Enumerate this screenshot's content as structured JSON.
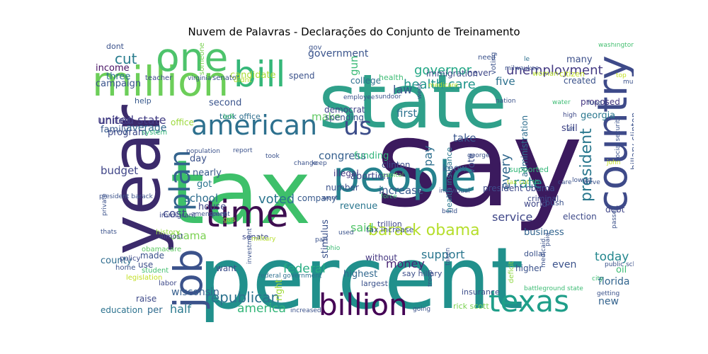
{
  "chart_data": {
    "type": "wordcloud",
    "title": "Nuvem de Palavras - Declarações do Conjunto de Treinamento",
    "words": [
      {
        "text": "say",
        "color": "#3b1a5e"
      },
      {
        "text": "tax",
        "color": "#3ec06a"
      },
      {
        "text": "state",
        "color": "#2fa08a"
      },
      {
        "text": "percent",
        "color": "#21908c"
      },
      {
        "text": "year",
        "color": "#3b2a6b"
      },
      {
        "text": "million",
        "color": "#6cce59"
      },
      {
        "text": "people",
        "color": "#26828e"
      },
      {
        "text": "one",
        "color": "#4dc36b"
      },
      {
        "text": "time",
        "color": "#3e0f50"
      },
      {
        "text": "bill",
        "color": "#35b779"
      },
      {
        "text": "country",
        "color": "#3e4a89"
      },
      {
        "text": "billion",
        "color": "#440154"
      },
      {
        "text": "texas",
        "color": "#1f9e89"
      },
      {
        "text": "job",
        "color": "#3b528b"
      },
      {
        "text": "american",
        "color": "#2d708e"
      },
      {
        "text": "plan",
        "color": "#33638d"
      },
      {
        "text": "us",
        "color": "#3d4e8a"
      },
      {
        "text": "barack obama",
        "color": "#b5de2b"
      },
      {
        "text": "republican",
        "color": "#2c728e"
      },
      {
        "text": "president",
        "color": "#2a788e"
      },
      {
        "text": "every",
        "color": "#31688e"
      },
      {
        "text": "rate",
        "color": "#25858e"
      },
      {
        "text": "health care",
        "color": "#1f958b"
      },
      {
        "text": "unemployment",
        "color": "#443a83"
      },
      {
        "text": "governor",
        "color": "#22a785"
      },
      {
        "text": "cut",
        "color": "#287c8e"
      },
      {
        "text": "government",
        "color": "#3a548c"
      },
      {
        "text": "united state",
        "color": "#433e85"
      },
      {
        "text": "congress",
        "color": "#355f8d"
      },
      {
        "text": "law",
        "color": "#39568c"
      },
      {
        "text": "pay",
        "color": "#2e6f8e"
      },
      {
        "text": "voted",
        "color": "#2b748e"
      },
      {
        "text": "america",
        "color": "#34b679"
      },
      {
        "text": "federal",
        "color": "#26ad81"
      },
      {
        "text": "money",
        "color": "#482475"
      },
      {
        "text": "service",
        "color": "#3f4788"
      },
      {
        "text": "today",
        "color": "#24878e"
      },
      {
        "text": "half",
        "color": "#29798e"
      },
      {
        "text": "cost",
        "color": "#3e4989"
      },
      {
        "text": "said",
        "color": "#52c569"
      },
      {
        "text": "support",
        "color": "#2a768e"
      },
      {
        "text": "school",
        "color": "#2e6d8e"
      },
      {
        "text": "obama",
        "color": "#7ad151"
      },
      {
        "text": "increase",
        "color": "#38588c"
      },
      {
        "text": "budget",
        "color": "#404688"
      },
      {
        "text": "wisconsin",
        "color": "#355e8d"
      },
      {
        "text": "make",
        "color": "#5ec962"
      },
      {
        "text": "first",
        "color": "#2c718e"
      },
      {
        "text": "take",
        "color": "#39558c"
      },
      {
        "text": "gun",
        "color": "#3aba76"
      },
      {
        "text": "five",
        "color": "#2d718e"
      },
      {
        "text": "average",
        "color": "#31668e"
      },
      {
        "text": "income",
        "color": "#471063"
      },
      {
        "text": "three",
        "color": "#2d708e"
      },
      {
        "text": "campaign",
        "color": "#3a548c"
      },
      {
        "text": "candidate",
        "color": "#a8db34"
      },
      {
        "text": "united",
        "color": "#433e85"
      },
      {
        "text": "georgia",
        "color": "#2a778e"
      },
      {
        "text": "new",
        "color": "#33628d"
      },
      {
        "text": "oil",
        "color": "#3dbc74"
      },
      {
        "text": "florida",
        "color": "#32648e"
      },
      {
        "text": "even",
        "color": "#3b528b"
      },
      {
        "text": "still",
        "color": "#414487"
      },
      {
        "text": "many",
        "color": "#3c4f8a"
      },
      {
        "text": "highest",
        "color": "#31678e"
      },
      {
        "text": "education",
        "color": "#2c728e"
      },
      {
        "text": "county",
        "color": "#2f6c8e"
      },
      {
        "text": "know",
        "color": "#365d8d"
      },
      {
        "text": "abortion",
        "color": "#3f4889"
      },
      {
        "text": "funding",
        "color": "#31b57b"
      },
      {
        "text": "revenue",
        "color": "#2a768e"
      },
      {
        "text": "vote",
        "color": "#3c4f8a"
      },
      {
        "text": "nearly",
        "color": "#38598c"
      },
      {
        "text": "got",
        "color": "#2b748e"
      },
      {
        "text": "day",
        "color": "#3b528b"
      },
      {
        "text": "right",
        "color": "#a0da39"
      },
      {
        "text": "per",
        "color": "#2f6b8e"
      },
      {
        "text": "second",
        "color": "#3a548c"
      },
      {
        "text": "program",
        "color": "#3e4989"
      },
      {
        "text": "family",
        "color": "#38598c"
      },
      {
        "text": "house",
        "color": "#3f4788"
      },
      {
        "text": "business",
        "color": "#32648e"
      },
      {
        "text": "proposed",
        "color": "#453781"
      },
      {
        "text": "election",
        "color": "#3e4a89"
      },
      {
        "text": "debt",
        "color": "#404688"
      },
      {
        "text": "created",
        "color": "#3b528b"
      },
      {
        "text": "world",
        "color": "#3f4788"
      },
      {
        "text": "administration",
        "color": "#2e6e8e"
      },
      {
        "text": "stimulus",
        "color": "#3b528b"
      },
      {
        "text": "company",
        "color": "#38598c"
      },
      {
        "text": "without",
        "color": "#453781"
      },
      {
        "text": "spend",
        "color": "#3b528b"
      },
      {
        "text": "college",
        "color": "#2d708e"
      },
      {
        "text": "immigration",
        "color": "#3d4e8a"
      },
      {
        "text": "never",
        "color": "#3f4788"
      },
      {
        "text": "democrat",
        "color": "#414487"
      },
      {
        "text": "spending",
        "color": "#3b528b"
      },
      {
        "text": "number",
        "color": "#3b528b"
      },
      {
        "text": "illegal",
        "color": "#453781"
      },
      {
        "text": "clinton",
        "color": "#3d4e8a"
      },
      {
        "text": "president obama",
        "color": "#3e4989"
      },
      {
        "text": "hillary clinton",
        "color": "#3b528b"
      },
      {
        "text": "made",
        "color": "#3b528b"
      },
      {
        "text": "use",
        "color": "#3d4e8a"
      },
      {
        "text": "raise",
        "color": "#3e4a89"
      },
      {
        "text": "want",
        "color": "#3d4e8a"
      },
      {
        "text": "higher",
        "color": "#3b528b"
      },
      {
        "text": "dollar",
        "color": "#3b528b"
      },
      {
        "text": "bush",
        "color": "#3b528b"
      },
      {
        "text": "help",
        "color": "#38598c"
      },
      {
        "text": "insurance",
        "color": "#3d4e8a"
      },
      {
        "text": "largest",
        "color": "#3b528b"
      },
      {
        "text": "say hillary",
        "color": "#3d4e8a"
      },
      {
        "text": "health insurance",
        "color": "#2a788e"
      },
      {
        "text": "took office",
        "color": "#2e6e8e"
      },
      {
        "text": "trillion",
        "color": "#3f4788"
      },
      {
        "text": "tax increase",
        "color": "#3b528b"
      },
      {
        "text": "senate",
        "color": "#3e4989"
      },
      {
        "text": "office",
        "color": "#9cd93b"
      },
      {
        "text": "history",
        "color": "#95d840"
      },
      {
        "text": "deficit",
        "color": "#8fd744"
      },
      {
        "text": "rick scott",
        "color": "#7ad151"
      },
      {
        "text": "supported",
        "color": "#35b779"
      },
      {
        "text": "criminal",
        "color": "#3e4a89"
      },
      {
        "text": "citizen",
        "color": "#c2df23"
      },
      {
        "text": "woman",
        "color": "#b5de2b"
      },
      {
        "text": "system",
        "color": "#35b779"
      },
      {
        "text": "left",
        "color": "#3dbc74"
      },
      {
        "text": "policy",
        "color": "#3e4a89"
      },
      {
        "text": "immigrant",
        "color": "#3e4989"
      },
      {
        "text": "almost",
        "color": "#3e4989"
      },
      {
        "text": "obamacare",
        "color": "#5ec962"
      },
      {
        "text": "student",
        "color": "#44bf70"
      },
      {
        "text": "legislation",
        "color": "#c2df23"
      },
      {
        "text": "home",
        "color": "#3b528b"
      },
      {
        "text": "labor",
        "color": "#3e4989"
      },
      {
        "text": "gas",
        "color": "#9cd93b"
      },
      {
        "text": "dont",
        "color": "#3b528b"
      },
      {
        "text": "teacher",
        "color": "#3e4989"
      },
      {
        "text": "gov",
        "color": "#3b528b"
      },
      {
        "text": "need",
        "color": "#3b528b"
      },
      {
        "text": "le",
        "color": "#2d708e"
      },
      {
        "text": "health",
        "color": "#3dbc74"
      },
      {
        "text": "senator",
        "color": "#3b528b"
      },
      {
        "text": "didnt",
        "color": "#b5de2b"
      },
      {
        "text": "someone",
        "color": "#7ad151"
      },
      {
        "text": "virginia",
        "color": "#3b528b"
      },
      {
        "text": "employee",
        "color": "#3b528b"
      },
      {
        "text": "sundoor",
        "color": "#3b528b"
      },
      {
        "text": "week",
        "color": "#3b528b"
      },
      {
        "text": "medicare",
        "color": "#b5de2b"
      },
      {
        "text": "voting",
        "color": "#3b528b"
      },
      {
        "text": "nation",
        "color": "#3b528b"
      },
      {
        "text": "water",
        "color": "#3dbc74"
      },
      {
        "text": "high",
        "color": "#3e4989"
      },
      {
        "text": "let",
        "color": "#3b528b"
      },
      {
        "text": "fund",
        "color": "#3b528b"
      },
      {
        "text": "top",
        "color": "#c2df23"
      },
      {
        "text": "muslim",
        "color": "#3b528b"
      },
      {
        "text": "washington",
        "color": "#44bf70"
      },
      {
        "text": "milwaukee",
        "color": "#3b528b"
      },
      {
        "text": "lowest",
        "color": "#3b528b"
      },
      {
        "text": "john",
        "color": "#c2df23"
      },
      {
        "text": "social security",
        "color": "#3b528b"
      },
      {
        "text": "george",
        "color": "#3b528b"
      },
      {
        "text": "force",
        "color": "#3dbc74"
      },
      {
        "text": "individual",
        "color": "#3b528b"
      },
      {
        "text": "population",
        "color": "#3b528b"
      },
      {
        "text": "report",
        "color": "#3b528b"
      },
      {
        "text": "took",
        "color": "#3b528b"
      },
      {
        "text": "change",
        "color": "#3b528b"
      },
      {
        "text": "keep",
        "color": "#3b528b"
      },
      {
        "text": "capital",
        "color": "#5ec962"
      },
      {
        "text": "build",
        "color": "#3b528b"
      },
      {
        "text": "went",
        "color": "#3b528b"
      },
      {
        "text": "used",
        "color": "#3b528b"
      },
      {
        "text": "part",
        "color": "#3b528b"
      },
      {
        "text": "ohio",
        "color": "#3dbc74"
      },
      {
        "text": "investment",
        "color": "#3b528b"
      },
      {
        "text": "military",
        "color": "#b5de2b"
      },
      {
        "text": "federal government",
        "color": "#2d708e"
      },
      {
        "text": "increased",
        "color": "#3b528b"
      },
      {
        "text": "going",
        "color": "#3b528b"
      },
      {
        "text": "troop",
        "color": "#3b528b"
      },
      {
        "text": "taken",
        "color": "#3b528b"
      },
      {
        "text": "medicaid",
        "color": "#3b528b"
      },
      {
        "text": "battleground state",
        "color": "#3dbc74"
      },
      {
        "text": "paid",
        "color": "#3b528b"
      },
      {
        "text": "public school",
        "color": "#3b528b"
      },
      {
        "text": "city",
        "color": "#3dbc74"
      },
      {
        "text": "getting",
        "color": "#3b528b"
      },
      {
        "text": "private",
        "color": "#3b528b"
      },
      {
        "text": "thats",
        "color": "#3b528b"
      },
      {
        "text": "amendment",
        "color": "#3b528b"
      },
      {
        "text": "spent",
        "color": "#3b528b"
      },
      {
        "text": "passed",
        "color": "#3b528b"
      },
      {
        "text": "tax cut",
        "color": "#b5de2b"
      },
      {
        "text": "th",
        "color": "#3dbc74"
      },
      {
        "text": "care",
        "color": "#3b528b"
      },
      {
        "text": "weve",
        "color": "#3b528b"
      },
      {
        "text": "president barack",
        "color": "#3b528b"
      }
    ]
  }
}
